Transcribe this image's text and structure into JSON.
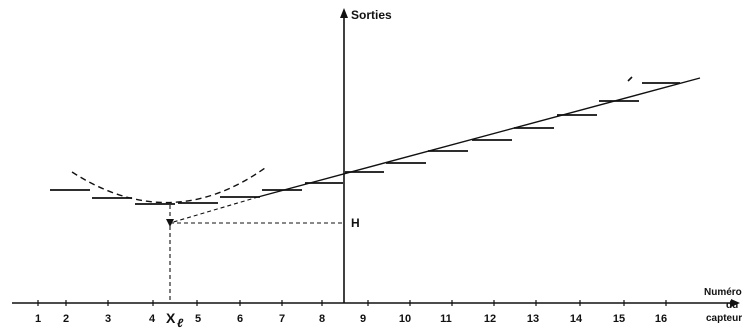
{
  "diagram": {
    "y_axis_label": "Sorties",
    "x_axis_label_lines": [
      "Numéro",
      "du",
      "capteur"
    ],
    "h_label": "H",
    "xl_label_main": "X",
    "xl_label_sub": "ℓ",
    "sensor_numbers": [
      "1",
      "2",
      "3",
      "4",
      "5",
      "6",
      "7",
      "8",
      "9",
      "10",
      "11",
      "12",
      "13",
      "14",
      "15",
      "16"
    ]
  }
}
